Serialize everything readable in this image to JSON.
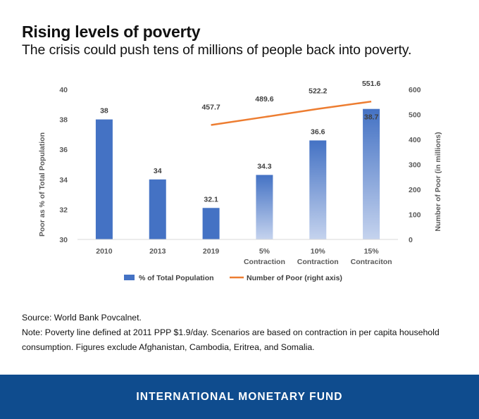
{
  "header": {
    "title": "Rising levels of poverty",
    "subtitle": "The crisis could push tens of millions of people back into poverty."
  },
  "chart_data": {
    "type": "bar",
    "categories": [
      "2010",
      "2013",
      "2019",
      "5%\nContraction",
      "10%\nContraction",
      "15%\nContraciton"
    ],
    "series": [
      {
        "name": "% of Total Population",
        "type": "bar",
        "axis": "left",
        "values": [
          38,
          34,
          32.1,
          34.3,
          36.6,
          38.7
        ],
        "labels": [
          "38",
          "34",
          "32.1",
          "34.3",
          "36.6",
          "38.7"
        ],
        "colors": [
          "#4472c4",
          "#4472c4",
          "#4472c4",
          "gradient",
          "gradient",
          "gradient"
        ]
      },
      {
        "name": "Number of Poor (right axis)",
        "type": "line",
        "axis": "right",
        "values": [
          null,
          null,
          457.7,
          489.6,
          522.2,
          551.6
        ],
        "labels": [
          "",
          "",
          "457.7",
          "489.6",
          "522.2",
          "551.6"
        ],
        "color": "#ed7d31"
      }
    ],
    "ylabel": "Poor as % of Total Population",
    "y2label": "Number of Poor (in millions)",
    "ylim": [
      30,
      40
    ],
    "yticks": [
      "30",
      "32",
      "34",
      "36",
      "38",
      "40"
    ],
    "y2lim": [
      0,
      600
    ],
    "y2ticks": [
      "0",
      "100",
      "200",
      "300",
      "400",
      "500",
      "600"
    ],
    "grid": false,
    "legend_position": "bottom"
  },
  "notes": {
    "source": "Source: World Bank Povcalnet.",
    "note": "Note: Poverty line defined at 2011 PPP $1.9/day. Scenarios are based on contraction in per capita household consumption. Figures exclude Afghanistan, Cambodia, Eritrea, and Somalia."
  },
  "footer": {
    "label": "INTERNATIONAL MONETARY FUND"
  },
  "colors": {
    "bar": "#4472c4",
    "line": "#ed7d31",
    "footer_bg": "#0f4c8e"
  }
}
